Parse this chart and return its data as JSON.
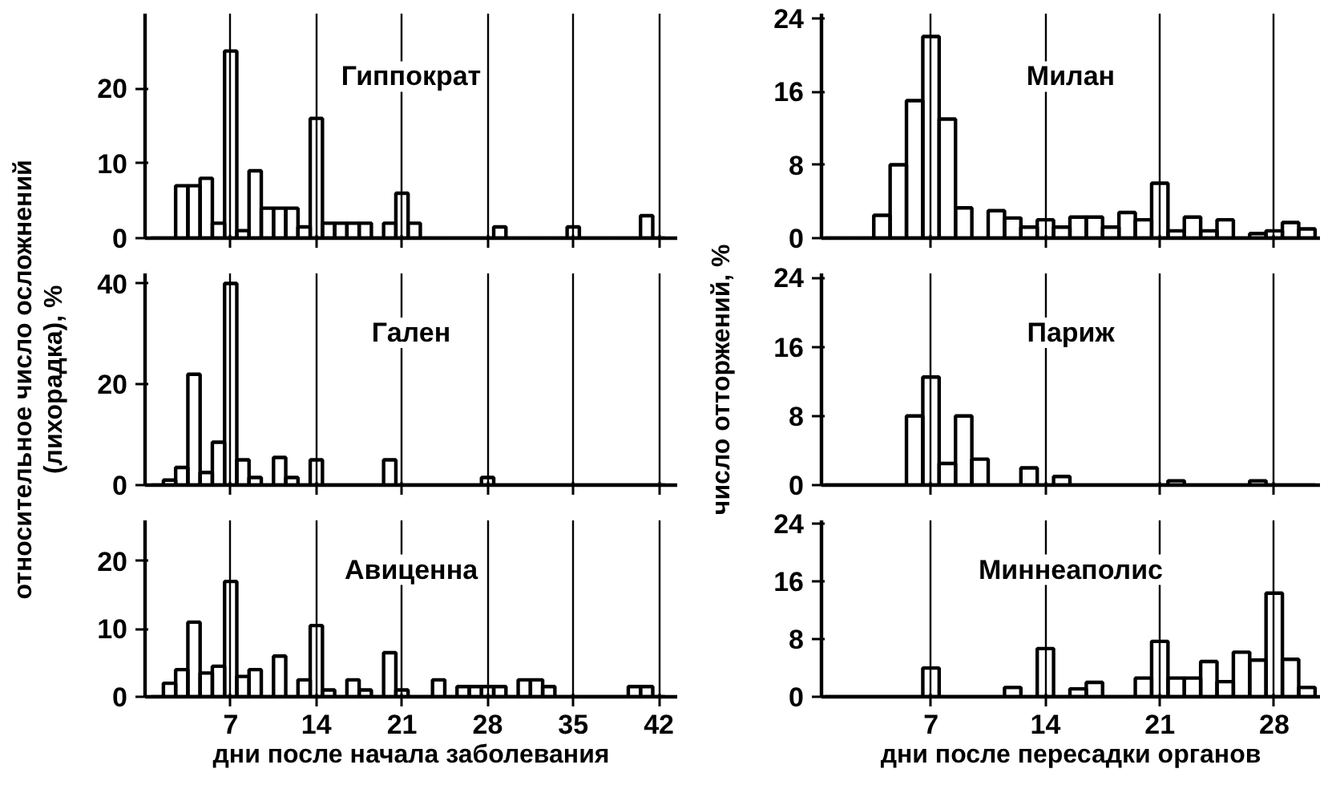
{
  "chart_data": [
    {
      "type": "histogram",
      "title": "Гиппократ",
      "color": "#000000",
      "bins": [
        0.5,
        1.5,
        2.5,
        3.5,
        4.5,
        5.5,
        6.5,
        7.5,
        8.5,
        9.5,
        10.5,
        11.5,
        12.5,
        13.5,
        14.5,
        15.5,
        16.5,
        17.5,
        18.5,
        19.5,
        20.5,
        21.5,
        22.5,
        23.5,
        24.5,
        25.5,
        26.5,
        27.5,
        28.5,
        29.5,
        30.5,
        31.5,
        32.5,
        33.5,
        34.5,
        35.5,
        36.5,
        37.5,
        38.5,
        39.5,
        40.5,
        41.5,
        42.5
      ],
      "values": [
        0,
        0,
        7,
        7,
        8,
        2,
        25,
        1,
        9,
        4,
        4,
        4,
        1.5,
        16,
        2,
        2,
        2,
        2,
        0,
        2,
        6,
        2,
        0,
        0,
        0,
        0,
        0,
        0,
        1.5,
        0,
        0,
        0,
        0,
        0,
        1.5,
        0,
        0,
        0,
        0,
        0,
        3,
        0
      ],
      "xlim": [
        0,
        43.5
      ],
      "ylim": [
        0,
        30
      ],
      "xticks": [
        7,
        14,
        21,
        28,
        35,
        42
      ],
      "yticks": [
        0,
        10,
        20
      ],
      "grid": "x",
      "tick_labels": "y"
    },
    {
      "type": "histogram",
      "title": "Гален",
      "ylabel": "относительное число осложнений (лихорадка), %",
      "color": "#000000",
      "bins": [
        0.5,
        1.5,
        2.5,
        3.5,
        4.5,
        5.5,
        6.5,
        7.5,
        8.5,
        9.5,
        10.5,
        11.5,
        12.5,
        13.5,
        14.5,
        15.5,
        16.5,
        17.5,
        18.5,
        19.5,
        20.5,
        21.5,
        22.5,
        23.5,
        24.5,
        25.5,
        26.5,
        27.5,
        28.5,
        29.5,
        30.5,
        31.5,
        32.5,
        33.5,
        34.5,
        35.5,
        36.5,
        37.5,
        38.5,
        39.5,
        40.5,
        41.5,
        42.5
      ],
      "values": [
        0,
        1,
        3.5,
        22,
        2.5,
        8.5,
        40,
        5,
        1.5,
        0,
        5.5,
        1.5,
        0,
        5,
        0,
        0,
        0,
        0,
        0,
        5,
        0,
        0,
        0,
        0,
        0,
        0,
        0,
        1.5,
        0,
        0,
        0,
        0,
        0,
        0,
        0,
        0,
        0,
        0,
        0,
        0,
        0,
        0
      ],
      "xlim": [
        0,
        43.5
      ],
      "ylim": [
        0,
        42
      ],
      "xticks": [
        7,
        14,
        21,
        28,
        35,
        42
      ],
      "yticks": [
        0,
        20,
        40
      ],
      "grid": "x",
      "tick_labels": "y"
    },
    {
      "type": "histogram",
      "title": "Авиценна",
      "xlabel": "дни после начала заболевания",
      "color": "#000000",
      "bins": [
        0.5,
        1.5,
        2.5,
        3.5,
        4.5,
        5.5,
        6.5,
        7.5,
        8.5,
        9.5,
        10.5,
        11.5,
        12.5,
        13.5,
        14.5,
        15.5,
        16.5,
        17.5,
        18.5,
        19.5,
        20.5,
        21.5,
        22.5,
        23.5,
        24.5,
        25.5,
        26.5,
        27.5,
        28.5,
        29.5,
        30.5,
        31.5,
        32.5,
        33.5,
        34.5,
        35.5,
        36.5,
        37.5,
        38.5,
        39.5,
        40.5,
        41.5,
        42.5
      ],
      "values": [
        0,
        2,
        4,
        11,
        3.5,
        4.5,
        17,
        3,
        4,
        0,
        6,
        0,
        2.5,
        10.5,
        1,
        0,
        2.5,
        1,
        0,
        6.5,
        1,
        0,
        0,
        2.5,
        0,
        1.5,
        1.5,
        1.5,
        1.5,
        0,
        2.5,
        2.5,
        1.5,
        0,
        0,
        0,
        0,
        0,
        0,
        1.5,
        1.5,
        0
      ],
      "xlim": [
        0,
        43.5
      ],
      "ylim": [
        0,
        26
      ],
      "xticks": [
        7,
        14,
        21,
        28,
        35,
        42
      ],
      "yticks": [
        0,
        10,
        20
      ],
      "grid": "x"
    },
    {
      "type": "histogram",
      "title": "Милан",
      "color": "#000000",
      "bins": [
        0.5,
        1.5,
        2.5,
        3.5,
        4.5,
        5.5,
        6.5,
        7.5,
        8.5,
        9.5,
        10.5,
        11.5,
        12.5,
        13.5,
        14.5,
        15.5,
        16.5,
        17.5,
        18.5,
        19.5,
        20.5,
        21.5,
        22.5,
        23.5,
        24.5,
        25.5,
        26.5,
        27.5,
        28.5,
        29.5,
        30.5
      ],
      "values": [
        0,
        0,
        0,
        2.5,
        8,
        15,
        22,
        13,
        3.3,
        0,
        3,
        2.2,
        1.2,
        2,
        1.2,
        2.3,
        2.3,
        1.2,
        2.8,
        2,
        6,
        0.8,
        2.3,
        0.8,
        2,
        0,
        0.5,
        0.8,
        1.7,
        1
      ],
      "xlim": [
        0.3,
        30.8
      ],
      "ylim": [
        0,
        24.5
      ],
      "xticks": [
        7,
        14,
        21,
        28
      ],
      "yticks": [
        0,
        8,
        16,
        24
      ],
      "grid": "x",
      "tick_labels": "y"
    },
    {
      "type": "histogram",
      "title": "Париж",
      "ylabel": "число отторжений, %",
      "color": "#000000",
      "bins": [
        0.5,
        1.5,
        2.5,
        3.5,
        4.5,
        5.5,
        6.5,
        7.5,
        8.5,
        9.5,
        10.5,
        11.5,
        12.5,
        13.5,
        14.5,
        15.5,
        16.5,
        17.5,
        18.5,
        19.5,
        20.5,
        21.5,
        22.5,
        23.5,
        24.5,
        25.5,
        26.5,
        27.5,
        28.5,
        29.5,
        30.5
      ],
      "values": [
        0,
        0,
        0,
        0,
        0,
        8,
        12.5,
        2.5,
        8,
        3,
        0,
        0,
        2,
        0,
        1,
        0,
        0,
        0,
        0,
        0,
        0,
        0.5,
        0,
        0,
        0,
        0,
        0.5,
        0,
        0,
        0
      ],
      "xlim": [
        0.3,
        30.8
      ],
      "ylim": [
        0,
        24.5
      ],
      "xticks": [
        7,
        14,
        21,
        28
      ],
      "yticks": [
        0,
        8,
        16,
        24
      ],
      "grid": "x",
      "tick_labels": "y"
    },
    {
      "type": "histogram",
      "title": "Миннеаполис",
      "xlabel": "дни после пересадки органов",
      "color": "#000000",
      "bins": [
        0.5,
        1.5,
        2.5,
        3.5,
        4.5,
        5.5,
        6.5,
        7.5,
        8.5,
        9.5,
        10.5,
        11.5,
        12.5,
        13.5,
        14.5,
        15.5,
        16.5,
        17.5,
        18.5,
        19.5,
        20.5,
        21.5,
        22.5,
        23.5,
        24.5,
        25.5,
        26.5,
        27.5,
        28.5,
        29.5,
        30.5
      ],
      "values": [
        0,
        0,
        0,
        0,
        0,
        0,
        4,
        0,
        0,
        0,
        0,
        1.3,
        0,
        6.7,
        0,
        1.1,
        2,
        0,
        0,
        2.6,
        7.7,
        2.6,
        2.6,
        4.9,
        2.1,
        6.2,
        5.1,
        14.4,
        5.2,
        1.3
      ],
      "xlim": [
        0.3,
        30.8
      ],
      "ylim": [
        0,
        24.5
      ],
      "xticks": [
        7,
        14,
        21,
        28
      ],
      "yticks": [
        0,
        8,
        16,
        24
      ],
      "grid": "x"
    }
  ]
}
